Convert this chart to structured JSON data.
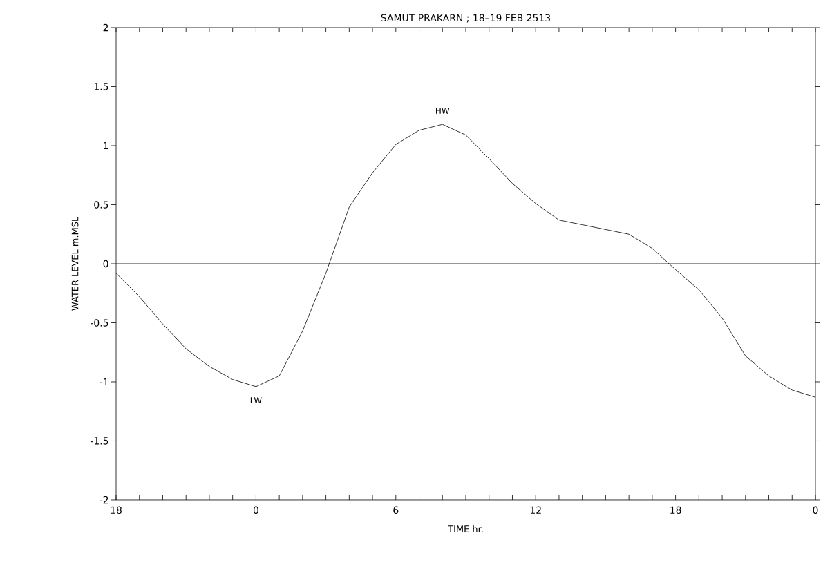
{
  "chart_data": {
    "type": "line",
    "title": "SAMUT PRAKARN ; 18–19 FEB 2513",
    "xlabel": "TIME hr.",
    "ylabel": "WATER LEVEL m.MSL",
    "categories": [
      "18",
      null,
      null,
      null,
      null,
      null,
      "0",
      null,
      null,
      null,
      null,
      null,
      "6",
      null,
      null,
      null,
      null,
      null,
      "12",
      null,
      null,
      null,
      null,
      null,
      "18",
      null,
      null,
      null,
      null,
      null,
      "0"
    ],
    "series": [
      {
        "color": "#000000",
        "values": [
          -0.08,
          -0.28,
          -0.51,
          -0.72,
          -0.87,
          -0.98,
          -1.04,
          -0.95,
          -0.57,
          -0.08,
          0.48,
          0.77,
          1.01,
          1.13,
          1.18,
          1.09,
          0.89,
          0.68,
          0.51,
          0.37,
          0.33,
          0.29,
          0.25,
          0.13,
          -0.05,
          -0.22,
          -0.46,
          -0.78,
          -0.95,
          -1.07,
          -1.13
        ]
      }
    ],
    "ylim": [
      -2,
      2
    ],
    "yticks": [
      -2,
      -1.5,
      -1,
      -0.5,
      0,
      0.5,
      1,
      1.5,
      2
    ],
    "ref_lines": [
      {
        "axis": "y",
        "value": 0
      }
    ],
    "annotations": [
      "HW",
      "LW"
    ],
    "marker": "none",
    "line_style": "solid",
    "grid": false
  }
}
